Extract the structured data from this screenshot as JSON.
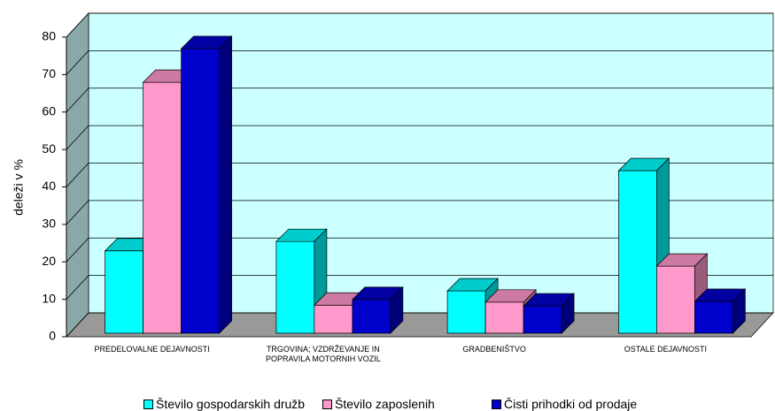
{
  "chart_data": {
    "type": "bar3d",
    "y_label": "deleži v %",
    "categories": [
      "PREDELOVALNE DEJAVNOSTI",
      "TRGOVINA; VZDRŽEVANJE IN POPRAVILA MOTORNIH VOZIL",
      "GRADBENIŠTVO",
      "OSTALE DEJAVNOSTI"
    ],
    "series": [
      {
        "name": "Število gospodarskih družb",
        "color": "#00ffff",
        "values": [
          22,
          24.5,
          11.3,
          43.4
        ]
      },
      {
        "name": "Število zaposlenih",
        "color": "#ff99cc",
        "values": [
          67,
          7.5,
          8.3,
          17.9
        ]
      },
      {
        "name": "Čisti prihodki od prodaje",
        "color": "#0000cc",
        "values": [
          76,
          9,
          7.3,
          8.5
        ]
      }
    ],
    "ylim": [
      0,
      80
    ],
    "yticks": [
      0,
      10,
      20,
      30,
      40,
      50,
      60,
      70,
      80
    ],
    "grid": true
  }
}
